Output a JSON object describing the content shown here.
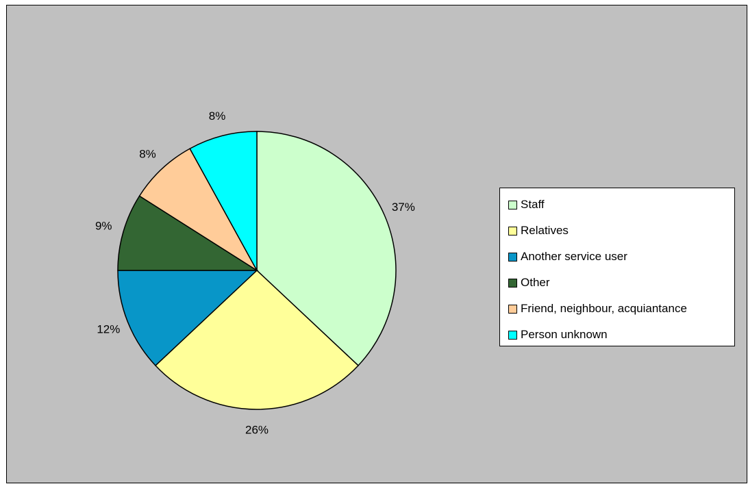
{
  "chart_data": {
    "type": "pie",
    "start_angle_deg": 0,
    "direction": "clockwise",
    "slices": [
      {
        "label": "Staff",
        "value": 37,
        "value_label": "37%",
        "color": "#ccffcc"
      },
      {
        "label": "Relatives",
        "value": 26,
        "value_label": "26%",
        "color": "#ffff99"
      },
      {
        "label": "Another service user",
        "value": 12,
        "value_label": "12%",
        "color": "#0896c8"
      },
      {
        "label": "Other",
        "value": 9,
        "value_label": "9%",
        "color": "#336633"
      },
      {
        "label": "Friend, neighbour, acquiantance",
        "value": 8,
        "value_label": "8%",
        "color": "#ffcc99"
      },
      {
        "label": "Person unknown",
        "value": 8,
        "value_label": "8%",
        "color": "#00ffff"
      }
    ],
    "legend_position": "right",
    "plot_background": "#c0c0c0"
  }
}
